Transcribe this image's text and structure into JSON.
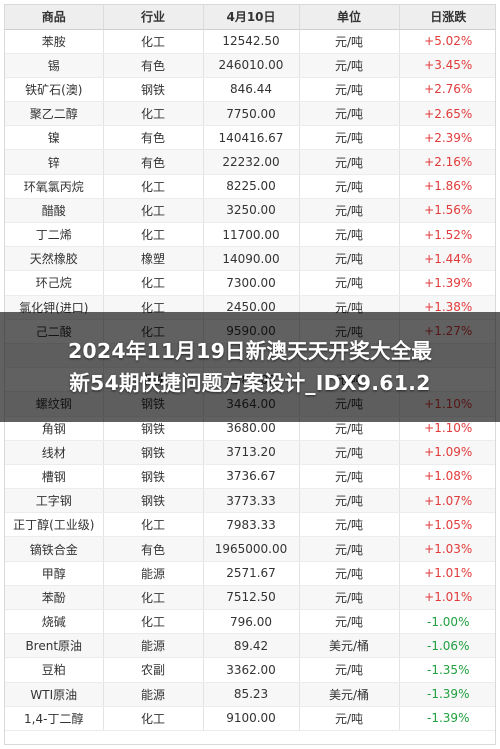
{
  "table": {
    "headers": [
      "商品",
      "行业",
      "4月10日",
      "单位",
      "日涨跌"
    ],
    "rows": [
      {
        "name": "苯胺",
        "industry": "化工",
        "price": "12542.50",
        "unit": "元/吨",
        "change": "+5.02%",
        "dir": "up"
      },
      {
        "name": "锡",
        "industry": "有色",
        "price": "246010.00",
        "unit": "元/吨",
        "change": "+3.45%",
        "dir": "up"
      },
      {
        "name": "铁矿石(澳)",
        "industry": "钢铁",
        "price": "846.44",
        "unit": "元/吨",
        "change": "+2.76%",
        "dir": "up"
      },
      {
        "name": "聚乙二醇",
        "industry": "化工",
        "price": "7750.00",
        "unit": "元/吨",
        "change": "+2.65%",
        "dir": "up"
      },
      {
        "name": "镍",
        "industry": "有色",
        "price": "140416.67",
        "unit": "元/吨",
        "change": "+2.39%",
        "dir": "up"
      },
      {
        "name": "锌",
        "industry": "有色",
        "price": "22232.00",
        "unit": "元/吨",
        "change": "+2.16%",
        "dir": "up"
      },
      {
        "name": "环氧氯丙烷",
        "industry": "化工",
        "price": "8225.00",
        "unit": "元/吨",
        "change": "+1.86%",
        "dir": "up"
      },
      {
        "name": "醋酸",
        "industry": "化工",
        "price": "3250.00",
        "unit": "元/吨",
        "change": "+1.56%",
        "dir": "up"
      },
      {
        "name": "丁二烯",
        "industry": "化工",
        "price": "11700.00",
        "unit": "元/吨",
        "change": "+1.52%",
        "dir": "up"
      },
      {
        "name": "天然橡胶",
        "industry": "橡塑",
        "price": "14090.00",
        "unit": "元/吨",
        "change": "+1.44%",
        "dir": "up"
      },
      {
        "name": "环己烷",
        "industry": "化工",
        "price": "7300.00",
        "unit": "元/吨",
        "change": "+1.39%",
        "dir": "up"
      },
      {
        "name": "氯化钾(进口)",
        "industry": "化工",
        "price": "2450.00",
        "unit": "元/吨",
        "change": "+1.38%",
        "dir": "up"
      },
      {
        "name": "己二酸",
        "industry": "化工",
        "price": "9590.00",
        "unit": "元/吨",
        "change": "+1.27%",
        "dir": "up"
      },
      {
        "name": "",
        "industry": "",
        "price": "",
        "unit": "",
        "change": "",
        "dir": "up"
      },
      {
        "name": "",
        "industry": "钢铁",
        "price": "3380.00",
        "unit": "元/吨",
        "change": "",
        "dir": "up"
      },
      {
        "name": "螺纹钢",
        "industry": "钢铁",
        "price": "3464.00",
        "unit": "元/吨",
        "change": "+1.10%",
        "dir": "up"
      },
      {
        "name": "角钢",
        "industry": "钢铁",
        "price": "3680.00",
        "unit": "元/吨",
        "change": "+1.10%",
        "dir": "up"
      },
      {
        "name": "线材",
        "industry": "钢铁",
        "price": "3713.20",
        "unit": "元/吨",
        "change": "+1.09%",
        "dir": "up"
      },
      {
        "name": "槽钢",
        "industry": "钢铁",
        "price": "3736.67",
        "unit": "元/吨",
        "change": "+1.08%",
        "dir": "up"
      },
      {
        "name": "工字钢",
        "industry": "钢铁",
        "price": "3773.33",
        "unit": "元/吨",
        "change": "+1.07%",
        "dir": "up"
      },
      {
        "name": "正丁醇(工业级)",
        "industry": "化工",
        "price": "7983.33",
        "unit": "元/吨",
        "change": "+1.05%",
        "dir": "up"
      },
      {
        "name": "镝铁合金",
        "industry": "有色",
        "price": "1965000.00",
        "unit": "元/吨",
        "change": "+1.03%",
        "dir": "up"
      },
      {
        "name": "甲醇",
        "industry": "能源",
        "price": "2571.67",
        "unit": "元/吨",
        "change": "+1.01%",
        "dir": "up"
      },
      {
        "name": "苯酚",
        "industry": "化工",
        "price": "7512.50",
        "unit": "元/吨",
        "change": "+1.01%",
        "dir": "up"
      },
      {
        "name": "烧碱",
        "industry": "化工",
        "price": "796.00",
        "unit": "元/吨",
        "change": "-1.00%",
        "dir": "down"
      },
      {
        "name": "Brent原油",
        "industry": "能源",
        "price": "89.42",
        "unit": "美元/桶",
        "change": "-1.06%",
        "dir": "down"
      },
      {
        "name": "豆粕",
        "industry": "农副",
        "price": "3362.00",
        "unit": "元/吨",
        "change": "-1.35%",
        "dir": "down"
      },
      {
        "name": "WTI原油",
        "industry": "能源",
        "price": "85.23",
        "unit": "美元/桶",
        "change": "-1.39%",
        "dir": "down"
      },
      {
        "name": "1,4-丁二醇",
        "industry": "化工",
        "price": "9100.00",
        "unit": "元/吨",
        "change": "-1.39%",
        "dir": "down"
      }
    ]
  },
  "overlay": {
    "line1": "2024年11月19日新澳天天开奖大全最",
    "line2": "新54期快捷问题方案设计_IDX9.61.2"
  },
  "colors": {
    "up": "#e03b3b",
    "down": "#20a040",
    "header_bg": "#eeeeee"
  }
}
